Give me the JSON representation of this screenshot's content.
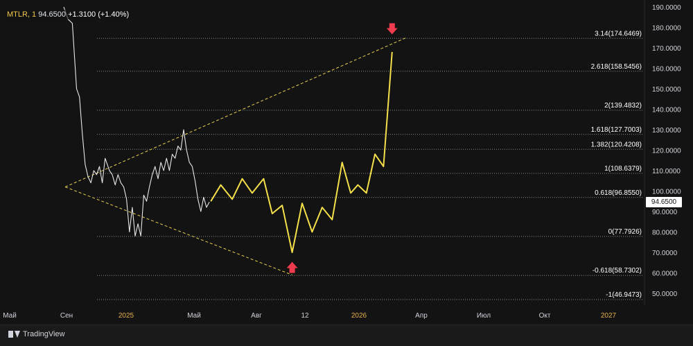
{
  "header": {
    "symbol": "MTLR, 1",
    "price": "94.6500",
    "change": "+1.3100 (+1.40%)"
  },
  "price_tag": "94.6500",
  "brand": "TradingView",
  "colors": {
    "background": "#131313",
    "price_line": "#e8e8e8",
    "projection": "#f5e04a",
    "fib_line": "#8a8a8a",
    "axis_text": "#d1d4dc",
    "month_text": "#d1d4dc",
    "year_text": "#e8b04a",
    "arrow": "#ef3b4f"
  },
  "chart_data": {
    "type": "line",
    "ylim": [
      45,
      190
    ],
    "y_ticks": [
      "50.0000",
      "60.0000",
      "70.0000",
      "80.0000",
      "90.0000",
      "100.0000",
      "110.0000",
      "120.0000",
      "130.0000",
      "140.0000",
      "150.0000",
      "160.0000",
      "170.0000",
      "180.0000",
      "190.0000"
    ],
    "x_ticks": [
      {
        "label": "Май",
        "kind": "month"
      },
      {
        "label": "Сен",
        "kind": "month"
      },
      {
        "label": "2025",
        "kind": "year"
      },
      {
        "label": "Май",
        "kind": "month"
      },
      {
        "label": "Авг",
        "kind": "month"
      },
      {
        "label": "12",
        "kind": "month"
      },
      {
        "label": "2026",
        "kind": "year"
      },
      {
        "label": "Апр",
        "kind": "month"
      },
      {
        "label": "Июл",
        "kind": "month"
      },
      {
        "label": "Окт",
        "kind": "month"
      },
      {
        "label": "2027",
        "kind": "year"
      }
    ],
    "fib_levels": [
      {
        "label": "3.14(174.6469)",
        "value": 174.6469
      },
      {
        "label": "2.618(158.5456)",
        "value": 158.5456
      },
      {
        "label": "2(139.4832)",
        "value": 139.4832
      },
      {
        "label": "1.618(127.7003)",
        "value": 127.7003
      },
      {
        "label": "1.382(120.4208)",
        "value": 120.4208
      },
      {
        "label": "1(108.6379)",
        "value": 108.6379
      },
      {
        "label": "0.618(96.8550)",
        "value": 96.855
      },
      {
        "label": "0(77.7926)",
        "value": 77.7926
      },
      {
        "label": "-0.618(58.7302)",
        "value": 58.7302
      },
      {
        "label": "-1(46.9473)",
        "value": 46.9473
      }
    ],
    "series": [
      {
        "role": "price",
        "x": [
          0.0,
          0.3,
          0.6,
          0.9,
          1.1,
          1.3,
          1.5,
          1.7,
          1.9,
          2.1,
          2.3,
          2.5,
          2.7,
          2.9,
          3.0,
          3.2,
          3.4,
          3.6,
          3.8,
          4.0,
          4.2,
          4.4,
          4.6,
          4.8,
          5.0,
          5.2,
          5.4,
          5.6,
          5.8,
          6.0,
          6.2,
          6.4,
          6.6,
          6.8,
          7.0,
          7.2,
          7.4,
          7.6,
          7.8,
          8.0,
          8.2,
          8.4,
          8.6,
          8.8,
          9.0,
          9.2,
          9.4,
          9.6,
          9.8,
          10.0,
          10.2
        ],
        "values": [
          190,
          184,
          182,
          150,
          146,
          128,
          113,
          107,
          104,
          110,
          108,
          112,
          104,
          116,
          114,
          110,
          108,
          103,
          108,
          104,
          102,
          96,
          80,
          92,
          78,
          84,
          78,
          98,
          95,
          102,
          108,
          112,
          106,
          114,
          110,
          116,
          110,
          118,
          116,
          122,
          120,
          130,
          120,
          114,
          112,
          105,
          96,
          90,
          97,
          92,
          94.65
        ]
      },
      {
        "role": "projection",
        "x": [
          10.3,
          11.0,
          11.8,
          12.5,
          13.2,
          14.0,
          14.6,
          15.3,
          16.0,
          16.7,
          17.4,
          18.1,
          18.8,
          19.5,
          20.1,
          20.6,
          21.2,
          21.8,
          22.4,
          23.0
        ],
        "values": [
          95,
          103,
          96,
          106,
          99,
          106,
          89,
          93,
          70,
          94,
          80,
          92,
          86,
          114,
          99,
          103,
          99,
          118,
          112,
          168
        ]
      }
    ],
    "trendlines": [
      {
        "x": [
          0.1,
          24.0
        ],
        "values": [
          102,
          175
        ]
      },
      {
        "x": [
          0.1,
          16.0
        ],
        "values": [
          102,
          59
        ]
      }
    ],
    "markers": [
      {
        "x": 23.0,
        "value": 179,
        "direction": "down"
      },
      {
        "x": 16.0,
        "value": 63,
        "direction": "up"
      }
    ]
  }
}
